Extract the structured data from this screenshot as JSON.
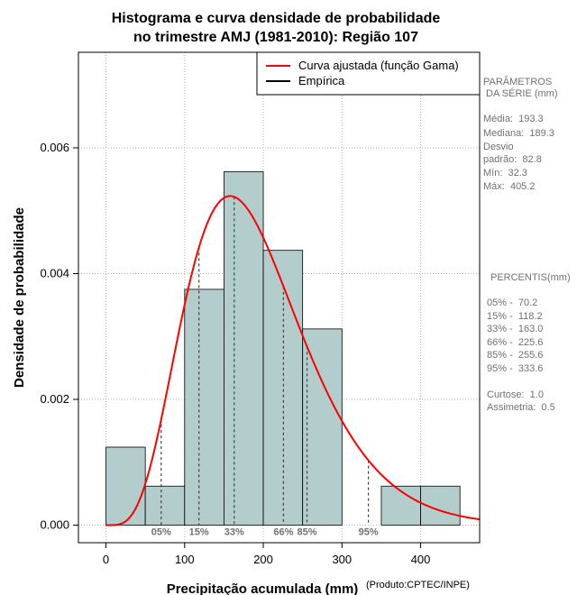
{
  "chart_data": {
    "type": "histogram",
    "title_lines": [
      "Histograma e curva densidade de probabilidade",
      "no trimestre AMJ (1981-2010): Região 107"
    ],
    "xlabel": "Precipitação acumulada (mm)",
    "ylabel": "Densidade de probabilidade",
    "credit": "(Produto:CPTEC/INPE)",
    "xlim": [
      -35,
      475
    ],
    "ylim": [
      -0.00028,
      0.00752
    ],
    "x_ticks": [
      0,
      100,
      200,
      300,
      400
    ],
    "x_tick_labels": [
      "0",
      "100",
      "200",
      "300",
      "400"
    ],
    "y_ticks": [
      0.0,
      0.002,
      0.004,
      0.006
    ],
    "y_tick_labels": [
      "0.000",
      "0.002",
      "0.004",
      "0.006"
    ],
    "grid": true,
    "bins": [
      {
        "x0": 0,
        "x1": 50,
        "density": 0.00124
      },
      {
        "x0": 50,
        "x1": 100,
        "density": 0.00062
      },
      {
        "x0": 100,
        "x1": 150,
        "density": 0.00375
      },
      {
        "x0": 150,
        "x1": 200,
        "density": 0.00562
      },
      {
        "x0": 200,
        "x1": 250,
        "density": 0.00437
      },
      {
        "x0": 250,
        "x1": 300,
        "density": 0.00312
      },
      {
        "x0": 300,
        "x1": 350,
        "density": 0.0
      },
      {
        "x0": 350,
        "x1": 400,
        "density": 0.00062
      },
      {
        "x0": 400,
        "x1": 450,
        "density": 0.00062
      }
    ],
    "bar_color": "#b3cccc",
    "gamma_fit": {
      "mean": 193.3,
      "sd": 82.8,
      "x_range": [
        0,
        475
      ],
      "color": "#ff0000"
    },
    "legend": {
      "position": "top-right",
      "entries": [
        {
          "label": "Curva ajustada (função Gama)",
          "color": "#ff0000"
        },
        {
          "label": "Empírica",
          "color": "#000000"
        }
      ]
    },
    "percentile_markers": [
      {
        "label": "05%",
        "x": 70.2
      },
      {
        "label": "15%",
        "x": 118.2
      },
      {
        "label": "33%",
        "x": 163.0
      },
      {
        "label": "66%",
        "x": 225.6
      },
      {
        "label": "85%",
        "x": 255.6
      },
      {
        "label": "95%",
        "x": 333.6
      }
    ]
  },
  "side_panel": {
    "params_header": [
      "PARÂMETROS",
      " DA SÉRIE (mm)"
    ],
    "params": [
      "Média:  193.3",
      "Mediana:  189.3",
      "Desvio",
      "padrão:  82.8",
      "Mín:  32.3",
      "Máx:  405.2"
    ],
    "percentis_header": "PERCENTIS(mm)",
    "percentis": [
      "05% -  70.2",
      "15% -  118.2",
      "33% -  163.0",
      "66% -  225.6",
      "85% -  255.6",
      "95% -  333.6"
    ],
    "stats": [
      "Curtose:  1.0",
      "Assimetria:  0.5"
    ]
  }
}
